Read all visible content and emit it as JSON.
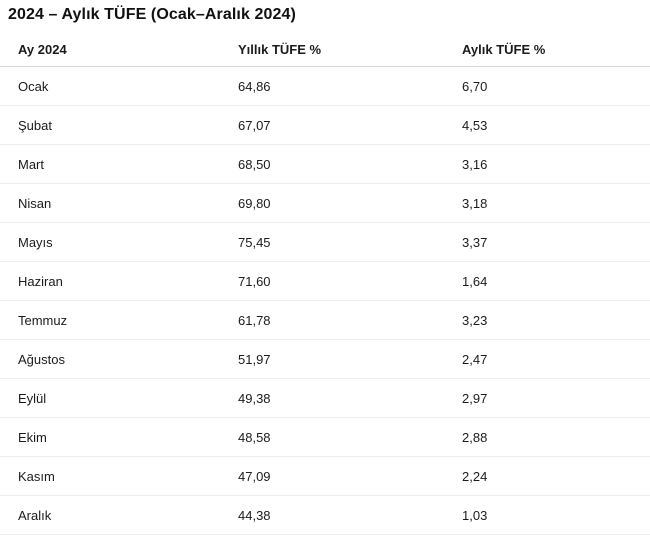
{
  "title": "2024 – Aylık TÜFE (Ocak–Aralık 2024)",
  "table": {
    "columns": [
      "Ay 2024",
      "Yıllık TÜFE %",
      "Aylık TÜFE %"
    ],
    "rows": [
      [
        "Ocak",
        "64,86",
        "6,70"
      ],
      [
        "Şubat",
        "67,07",
        "4,53"
      ],
      [
        "Mart",
        "68,50",
        "3,16"
      ],
      [
        "Nisan",
        "69,80",
        "3,18"
      ],
      [
        "Mayıs",
        "75,45",
        "3,37"
      ],
      [
        "Haziran",
        "71,60",
        "1,64"
      ],
      [
        "Temmuz",
        "61,78",
        "3,23"
      ],
      [
        "Ağustos",
        "51,97",
        "2,47"
      ],
      [
        "Eylül",
        "49,38",
        "2,97"
      ],
      [
        "Ekim",
        "48,58",
        "2,88"
      ],
      [
        "Kasım",
        "47,09",
        "2,24"
      ],
      [
        "Aralık",
        "44,38",
        "1,03"
      ]
    ]
  },
  "chart_data": {
    "type": "table",
    "title": "2024 – Aylık TÜFE (Ocak–Aralık 2024)",
    "columns": [
      "Ay 2024",
      "Yıllık TÜFE %",
      "Aylık TÜFE %"
    ],
    "months": [
      "Ocak",
      "Şubat",
      "Mart",
      "Nisan",
      "Mayıs",
      "Haziran",
      "Temmuz",
      "Ağustos",
      "Eylül",
      "Ekim",
      "Kasım",
      "Aralık"
    ],
    "series": [
      {
        "name": "Yıllık TÜFE %",
        "values": [
          64.86,
          67.07,
          68.5,
          69.8,
          75.45,
          71.6,
          61.78,
          51.97,
          49.38,
          48.58,
          47.09,
          44.38
        ]
      },
      {
        "name": "Aylık TÜFE %",
        "values": [
          6.7,
          4.53,
          3.16,
          3.18,
          3.37,
          1.64,
          3.23,
          2.47,
          2.97,
          2.88,
          2.24,
          1.03
        ]
      }
    ],
    "decimal_separator": ",",
    "grid": "horizontal-row-separators",
    "legend_position": "none"
  },
  "colors": {
    "background": "#ffffff",
    "text": "#1b1b1b",
    "title_text": "#111111",
    "header_separator": "#d6d6d6",
    "row_separator": "#ededed"
  }
}
